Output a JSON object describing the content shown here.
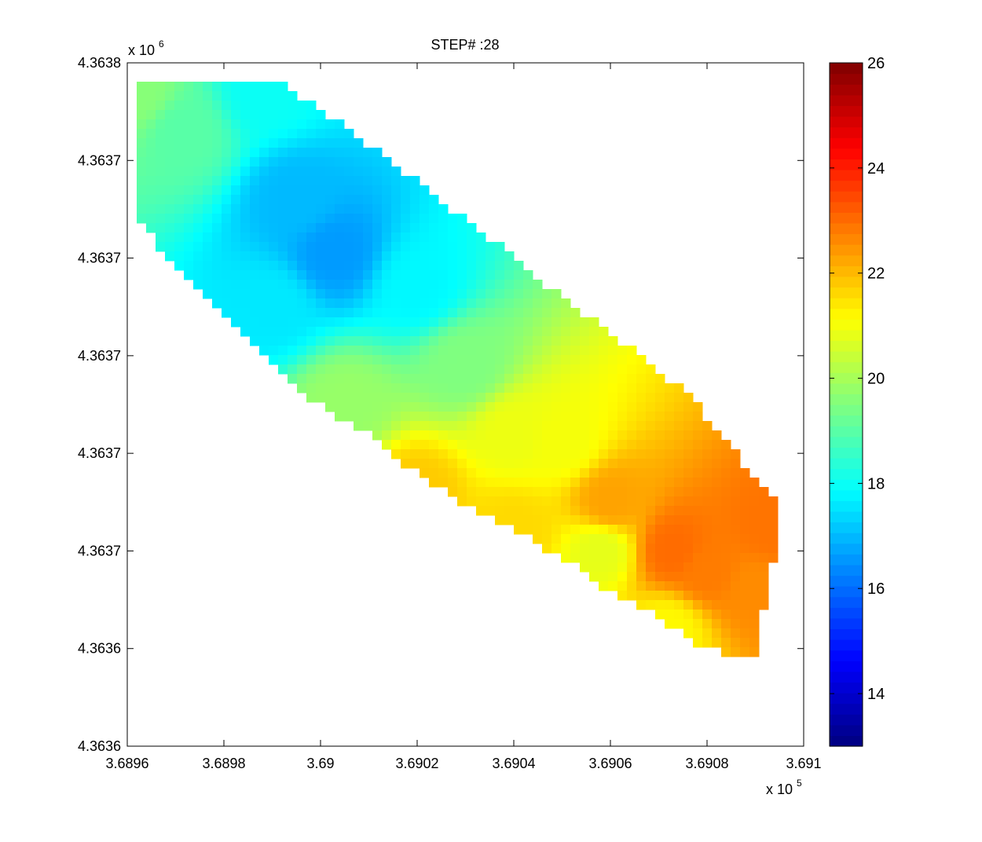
{
  "chart_data": [
    {
      "type": "heatmap",
      "title": "STEP# :28",
      "xlabel": "",
      "ylabel": "",
      "x_multiplier_label": "x 10",
      "x_multiplier_exponent": "5",
      "y_multiplier_label": "x 10",
      "y_multiplier_exponent": "6",
      "xlim": [
        3.6896,
        3.691
      ],
      "ylim": [
        0,
        7
      ],
      "x_ticks": [
        3.6896,
        3.6898,
        3.69,
        3.6902,
        3.6904,
        3.6906,
        3.6908,
        3.691
      ],
      "x_tick_labels": [
        "3.6896",
        "3.6898",
        "3.69",
        "3.6902",
        "3.6904",
        "3.6906",
        "3.6908",
        "3.691"
      ],
      "y_ticks": [
        0,
        1,
        2,
        3,
        4,
        5,
        6,
        7
      ],
      "y_tick_labels": [
        "4.3636",
        "4.3636",
        "4.3637",
        "4.3637",
        "4.3637",
        "4.3637",
        "4.3637",
        "4.3638"
      ],
      "colormap": "jet",
      "grid": false,
      "domain_polygon": [
        [
          3.68961,
          6.82
        ],
        [
          3.68992,
          6.82
        ],
        [
          3.68996,
          6.65
        ],
        [
          3.69004,
          6.38
        ],
        [
          3.69013,
          6.05
        ],
        [
          3.69026,
          5.55
        ],
        [
          3.69039,
          5.05
        ],
        [
          3.69051,
          4.55
        ],
        [
          3.69061,
          4.2
        ],
        [
          3.69069,
          3.9
        ],
        [
          3.69077,
          3.55
        ],
        [
          3.69084,
          3.15
        ],
        [
          3.69089,
          2.8
        ],
        [
          3.69095,
          2.5
        ],
        [
          3.69095,
          2.0
        ],
        [
          3.69093,
          1.85
        ],
        [
          3.69093,
          1.55
        ],
        [
          3.6909,
          1.25
        ],
        [
          3.6909,
          0.95
        ],
        [
          3.69084,
          0.95
        ],
        [
          3.69076,
          1.1
        ],
        [
          3.69069,
          1.35
        ],
        [
          3.69062,
          1.5
        ],
        [
          3.69054,
          1.8
        ],
        [
          3.69046,
          2.05
        ],
        [
          3.69036,
          2.3
        ],
        [
          3.69026,
          2.6
        ],
        [
          3.69017,
          2.9
        ],
        [
          3.6901,
          3.2
        ],
        [
          3.69001,
          3.45
        ],
        [
          3.68993,
          3.75
        ],
        [
          3.68988,
          4.0
        ],
        [
          3.6898,
          4.4
        ],
        [
          3.6897,
          4.9
        ],
        [
          3.68962,
          5.4
        ],
        [
          3.68961,
          5.7
        ]
      ],
      "field_sources": [
        {
          "x": 3.68962,
          "y": 6.7,
          "value": 19.6
        },
        {
          "x": 3.68972,
          "y": 6.3,
          "value": 19.0
        },
        {
          "x": 3.68988,
          "y": 6.7,
          "value": 18.0
        },
        {
          "x": 3.69003,
          "y": 5.05,
          "value": 16.6
        },
        {
          "x": 3.68995,
          "y": 5.6,
          "value": 17.0
        },
        {
          "x": 3.6899,
          "y": 4.5,
          "value": 17.6
        },
        {
          "x": 3.6902,
          "y": 4.7,
          "value": 17.8
        },
        {
          "x": 3.6903,
          "y": 3.9,
          "value": 19.5
        },
        {
          "x": 3.69005,
          "y": 3.5,
          "value": 19.8
        },
        {
          "x": 3.6904,
          "y": 3.2,
          "value": 20.9
        },
        {
          "x": 3.6905,
          "y": 3.1,
          "value": 21.0
        },
        {
          "x": 3.6902,
          "y": 2.6,
          "value": 21.8
        },
        {
          "x": 3.6904,
          "y": 2.2,
          "value": 21.6
        },
        {
          "x": 3.69058,
          "y": 2.0,
          "value": 20.8
        },
        {
          "x": 3.69072,
          "y": 1.2,
          "value": 21.2
        },
        {
          "x": 3.69073,
          "y": 2.0,
          "value": 23.0
        },
        {
          "x": 3.6908,
          "y": 1.8,
          "value": 22.8
        },
        {
          "x": 3.6906,
          "y": 2.5,
          "value": 22.3
        },
        {
          "x": 3.6909,
          "y": 1.6,
          "value": 22.6
        },
        {
          "x": 3.69093,
          "y": 2.25,
          "value": 22.9
        }
      ],
      "colorbar": {
        "min": 13,
        "max": 26,
        "ticks": [
          14,
          16,
          18,
          20,
          22,
          24,
          26
        ],
        "tick_labels": [
          "14",
          "16",
          "18",
          "20",
          "22",
          "24",
          "26"
        ]
      }
    }
  ]
}
